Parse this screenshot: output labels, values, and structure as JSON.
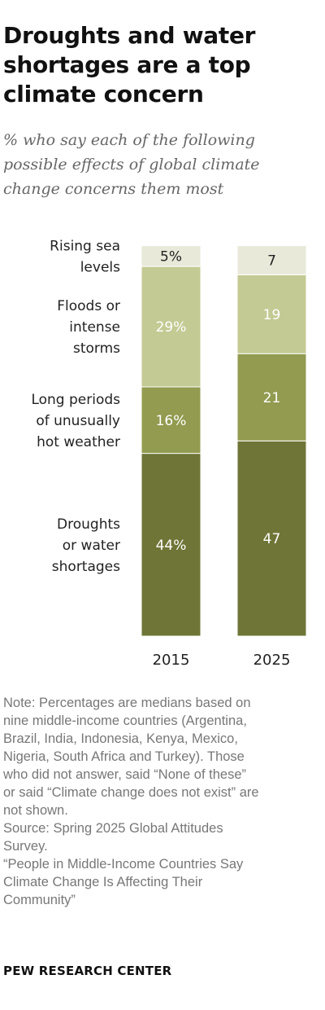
{
  "title": "Droughts and water shortages are a top climate concern",
  "subtitle": "% who say each of the following possible effects of global climate change concerns them most",
  "chart_data": {
    "type": "bar",
    "stacked": true,
    "orientation": "vertical",
    "categories": [
      "2015",
      "2025"
    ],
    "series": [
      {
        "name": "Droughts or water shortages",
        "values": [
          44,
          47
        ],
        "labels": [
          "44%",
          "47"
        ],
        "color": "#6f7536"
      },
      {
        "name": "Long periods of unusually hot weather",
        "values": [
          16,
          21
        ],
        "labels": [
          "16%",
          "21"
        ],
        "color": "#929b4f"
      },
      {
        "name": "Floods or intense storms",
        "values": [
          29,
          19
        ],
        "labels": [
          "29%",
          "19"
        ],
        "color": "#c4ca93"
      },
      {
        "name": "Rising sea levels",
        "values": [
          5,
          7
        ],
        "labels": [
          "5%",
          "7"
        ],
        "color": "#e8e9d9"
      }
    ],
    "series_labels": [
      [
        "Droughts",
        "or water",
        "shortages"
      ],
      [
        "Long periods",
        "of unusually",
        "hot weather"
      ],
      [
        "Floods or",
        "intense",
        "storms"
      ],
      [
        "Rising sea",
        "levels"
      ]
    ],
    "ylim": [
      0,
      94
    ]
  },
  "notes": [
    "Note: Percentages are medians based on",
    "nine middle-income countries (Argentina,",
    "Brazil, India, Indonesia, Kenya, Mexico,",
    "Nigeria, South Africa and Turkey). Those",
    "who did not answer, said “None of these”",
    "or said “Climate change does not exist” are",
    "not shown.",
    "Source: Spring 2025 Global Attitudes",
    "Survey.",
    "“People in Middle-Income Countries Say",
    "Climate Change Is Affecting Their",
    "Community”"
  ],
  "brand": "PEW RESEARCH CENTER"
}
